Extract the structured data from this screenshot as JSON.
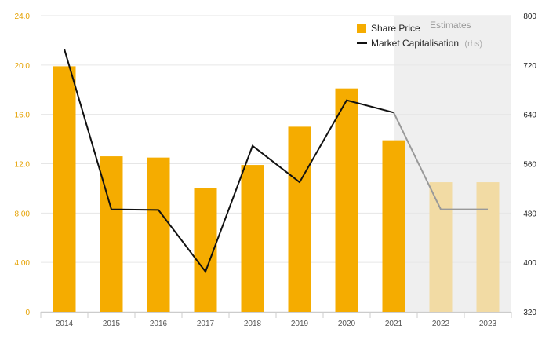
{
  "chart_data": {
    "type": "bar",
    "categories": [
      "2014",
      "2015",
      "2016",
      "2017",
      "2018",
      "2019",
      "2020",
      "2021",
      "2022",
      "2023"
    ],
    "estimate_start_index": 8,
    "estimates_label": "Estimates",
    "series": [
      {
        "name": "Share Price",
        "type": "bar",
        "axis": "left",
        "color": "#f5ac00",
        "estimate_color": "#f2dba4",
        "values": [
          19.9,
          12.6,
          12.5,
          10.0,
          11.9,
          15.0,
          18.1,
          13.9,
          10.5,
          10.5
        ]
      },
      {
        "name": "Market Capitalisation",
        "unit_label": "(rhs)",
        "type": "line",
        "axis": "right",
        "color": "#111111",
        "estimate_color": "#999999",
        "values": [
          746,
          486,
          485,
          385,
          589,
          530,
          663,
          643,
          486,
          486
        ]
      }
    ],
    "y_left": {
      "ylim": [
        0,
        24
      ],
      "ticks": [
        "0",
        "4.00",
        "8.00",
        "12.0",
        "16.0",
        "20.0",
        "24.0"
      ],
      "color": "#e5a100"
    },
    "y_right": {
      "ylim": [
        320,
        800
      ],
      "ticks": [
        "320",
        "400",
        "480",
        "560",
        "640",
        "720",
        "800"
      ]
    },
    "grid": true,
    "legend_position": "top-right",
    "estimates_shade_color": "#efefef"
  }
}
